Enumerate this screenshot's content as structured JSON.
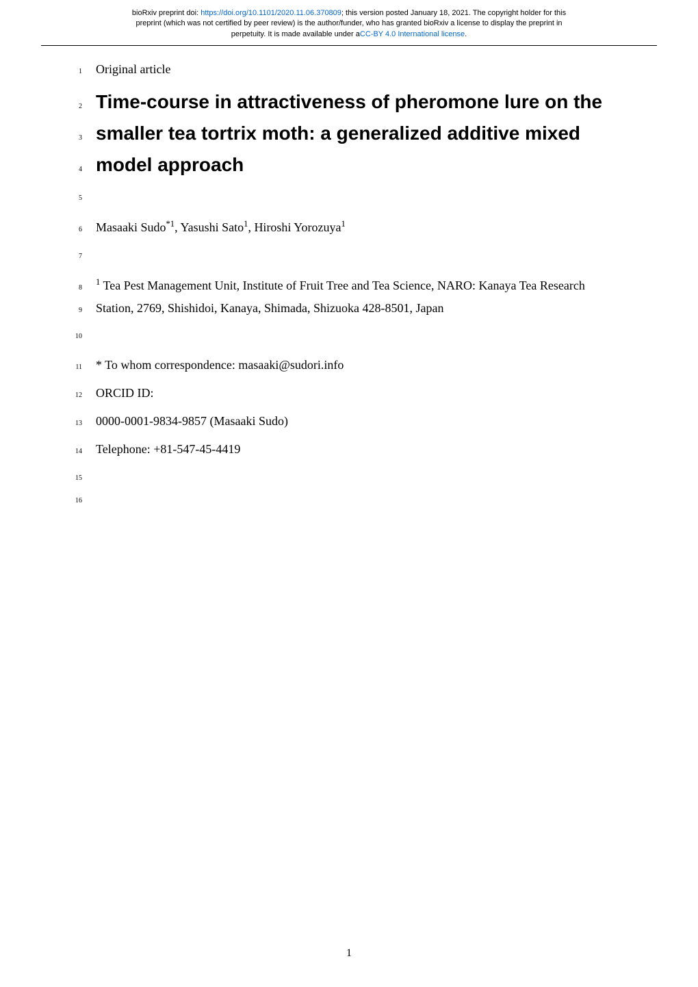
{
  "preprint_header": {
    "line1_prefix": "bioRxiv preprint doi: ",
    "doi_url": "https://doi.org/10.1101/2020.11.06.370809",
    "line1_suffix": "; this version posted January 18, 2021. The copyright holder for this",
    "line2": "preprint (which was not certified by peer review) is the author/funder, who has granted bioRxiv a license to display the preprint in",
    "line3_prefix": "perpetuity. It is made available under a",
    "license_text": "CC-BY 4.0 International license",
    "line3_suffix": "."
  },
  "lines": [
    {
      "num": "1",
      "type": "body",
      "text": "Original article"
    },
    {
      "num": "2",
      "type": "title",
      "text": "Time-course in attractiveness of pheromone lure on the"
    },
    {
      "num": "3",
      "type": "title",
      "text": "smaller tea tortrix moth: a generalized additive mixed"
    },
    {
      "num": "4",
      "type": "title",
      "text": "model approach"
    },
    {
      "num": "5",
      "type": "spacer",
      "text": ""
    },
    {
      "num": "6",
      "type": "authors",
      "text": ""
    },
    {
      "num": "7",
      "type": "spacer",
      "text": ""
    },
    {
      "num": "8",
      "type": "affiliation1",
      "text": ""
    },
    {
      "num": "9",
      "type": "body",
      "text": "Station, 2769, Shishidoi, Kanaya, Shimada, Shizuoka 428-8501, Japan"
    },
    {
      "num": "10",
      "type": "spacer",
      "text": ""
    },
    {
      "num": "11",
      "type": "body",
      "text": "* To whom correspondence: masaaki@sudori.info"
    },
    {
      "num": "12",
      "type": "body",
      "text": "ORCID ID:"
    },
    {
      "num": "13",
      "type": "body",
      "text": "0000-0001-9834-9857 (Masaaki Sudo)"
    },
    {
      "num": "14",
      "type": "body",
      "text": "Telephone: +81-547-45-4419"
    },
    {
      "num": "15",
      "type": "spacer",
      "text": ""
    },
    {
      "num": "16",
      "type": "spacer",
      "text": ""
    }
  ],
  "authors": {
    "a1_name": "Masaaki Sudo",
    "a1_sup": "*1",
    "a2_name": "Yasushi Sato",
    "a2_sup": "1",
    "a3_name": "Hiroshi Yorozuya",
    "a3_sup": "1"
  },
  "affiliation": {
    "sup": "1",
    "text": " Tea Pest Management Unit, Institute of Fruit Tree and Tea Science, NARO: Kanaya Tea Research"
  },
  "page_number": "1",
  "colors": {
    "link": "#0066cc",
    "text": "#000000",
    "background": "#ffffff"
  }
}
